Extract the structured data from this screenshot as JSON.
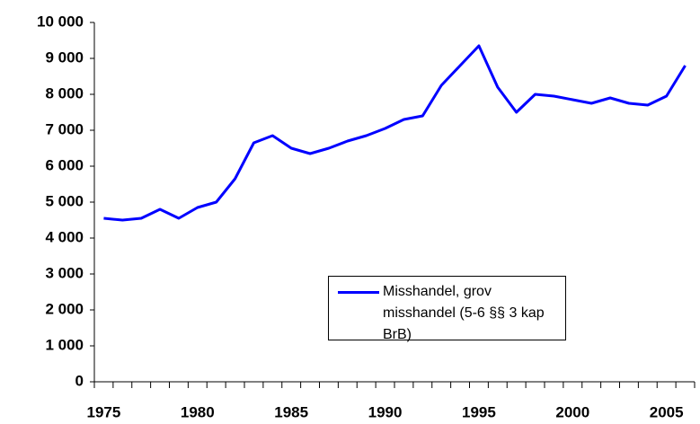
{
  "chart_data": {
    "type": "line",
    "categories": [
      "1975",
      null,
      null,
      null,
      null,
      "1980",
      null,
      null,
      null,
      null,
      "1985",
      null,
      null,
      null,
      null,
      "1990",
      null,
      null,
      null,
      null,
      "1995",
      null,
      null,
      null,
      null,
      "2000",
      null,
      null,
      null,
      null,
      "2005",
      null
    ],
    "series": [
      {
        "name": "Misshandel, grov misshandel (5-6 §§ 3 kap BrB)",
        "color": "#0000ff",
        "values": [
          4550,
          4500,
          4550,
          4800,
          4550,
          4850,
          5000,
          5650,
          6650,
          6850,
          6500,
          6350,
          6500,
          6700,
          6850,
          7050,
          7300,
          7400,
          8250,
          8800,
          9350,
          8200,
          7500,
          8000,
          7950,
          7850,
          7750,
          7900,
          7750,
          7700,
          7950,
          8800
        ]
      }
    ],
    "ylim": [
      0,
      10000
    ],
    "yticks": [
      0,
      {
        "value": 1000,
        "label": "1 000"
      },
      {
        "value": 2000,
        "label": "2 000"
      },
      {
        "value": 3000,
        "label": "3 000"
      },
      {
        "value": 4000,
        "label": "4 000"
      },
      {
        "value": 5000,
        "label": "5 000"
      },
      {
        "value": 6000,
        "label": "6 000"
      },
      {
        "value": 7000,
        "label": "7 000"
      },
      {
        "value": 8000,
        "label": "8 000"
      },
      {
        "value": 9000,
        "label": "9 000"
      },
      {
        "value": 10000,
        "label": "10 000"
      }
    ],
    "grid": false,
    "legend": "lower right"
  }
}
